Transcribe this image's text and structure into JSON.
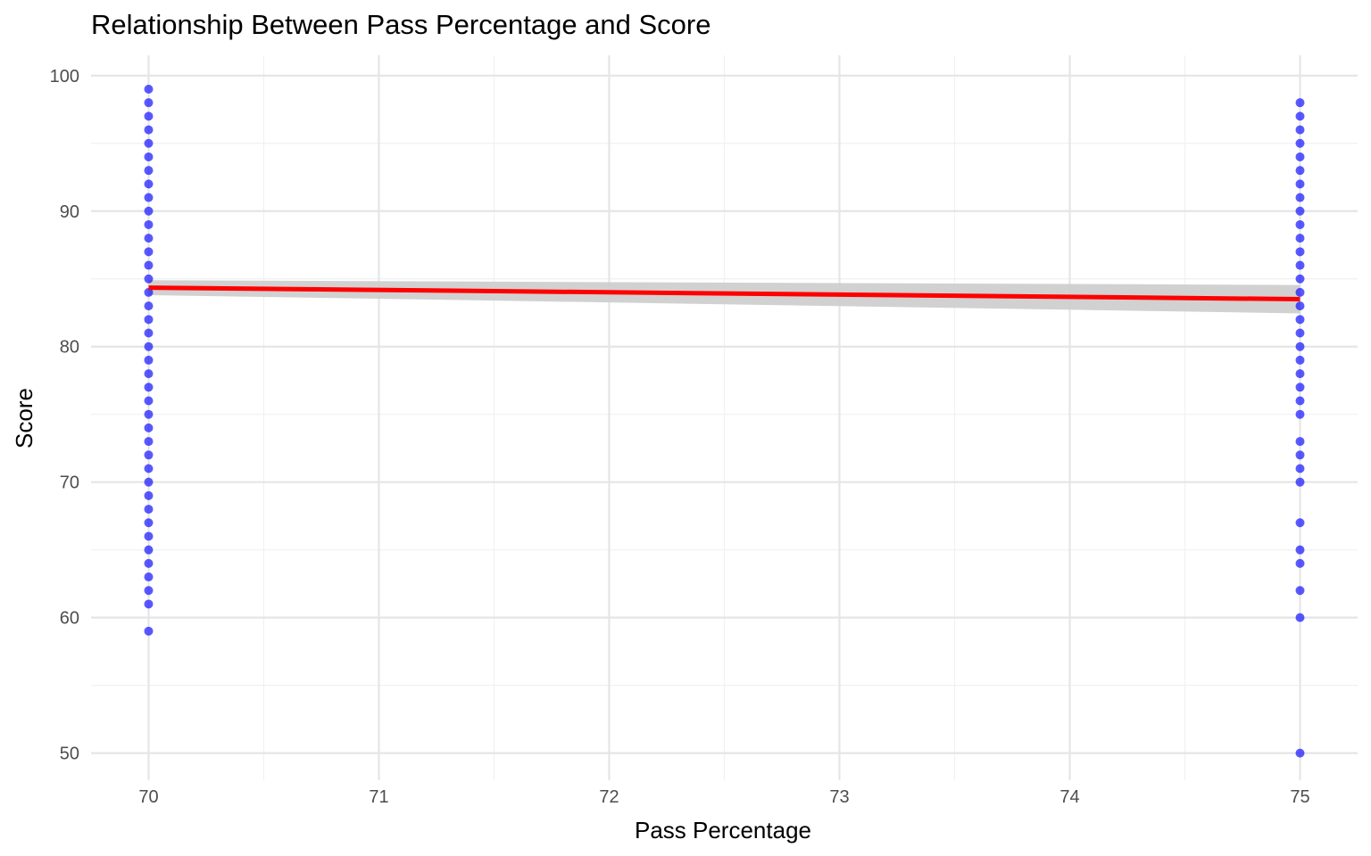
{
  "chart_data": {
    "type": "scatter",
    "title": "Relationship Between Pass Percentage and Score",
    "xlabel": "Pass Percentage",
    "ylabel": "Score",
    "xlim": [
      69.75,
      75.25
    ],
    "ylim": [
      48,
      101.5
    ],
    "x_ticks": [
      70,
      71,
      72,
      73,
      74,
      75
    ],
    "x_tick_labels": [
      "70",
      "71",
      "72",
      "73",
      "74",
      "75"
    ],
    "y_ticks": [
      50,
      60,
      70,
      80,
      90,
      100
    ],
    "y_tick_labels": [
      "50",
      "60",
      "70",
      "80",
      "90",
      "100"
    ],
    "grid": true,
    "legend": "none",
    "colors": {
      "points": "#0000ff",
      "trend_line": "#ff0000",
      "confidence_band": "#cccccc",
      "grid_major": "#e5e5e5",
      "grid_minor": "#f1f1f1"
    },
    "series": [
      {
        "type": "scatter",
        "points": [
          {
            "x": 70,
            "y": [
              59,
              61,
              62,
              63,
              64,
              65,
              66,
              67,
              68,
              69,
              70,
              71,
              72,
              73,
              74,
              75,
              76,
              77,
              78,
              79,
              80,
              81,
              82,
              83,
              84,
              85,
              86,
              87,
              88,
              89,
              90,
              91,
              92,
              93,
              94,
              95,
              96,
              97,
              98,
              99
            ]
          },
          {
            "x": 75,
            "y": [
              50,
              60,
              62,
              64,
              65,
              67,
              70,
              71,
              72,
              73,
              75,
              76,
              77,
              78,
              79,
              80,
              81,
              82,
              83,
              84,
              85,
              86,
              87,
              88,
              89,
              90,
              91,
              92,
              93,
              94,
              95,
              96,
              97,
              98
            ]
          }
        ]
      },
      {
        "type": "line",
        "method": "linear fit",
        "x": [
          70,
          75
        ],
        "y": [
          84.35,
          83.5
        ],
        "band_lower": [
          83.8,
          82.45
        ],
        "band_upper": [
          84.9,
          84.55
        ]
      }
    ]
  }
}
